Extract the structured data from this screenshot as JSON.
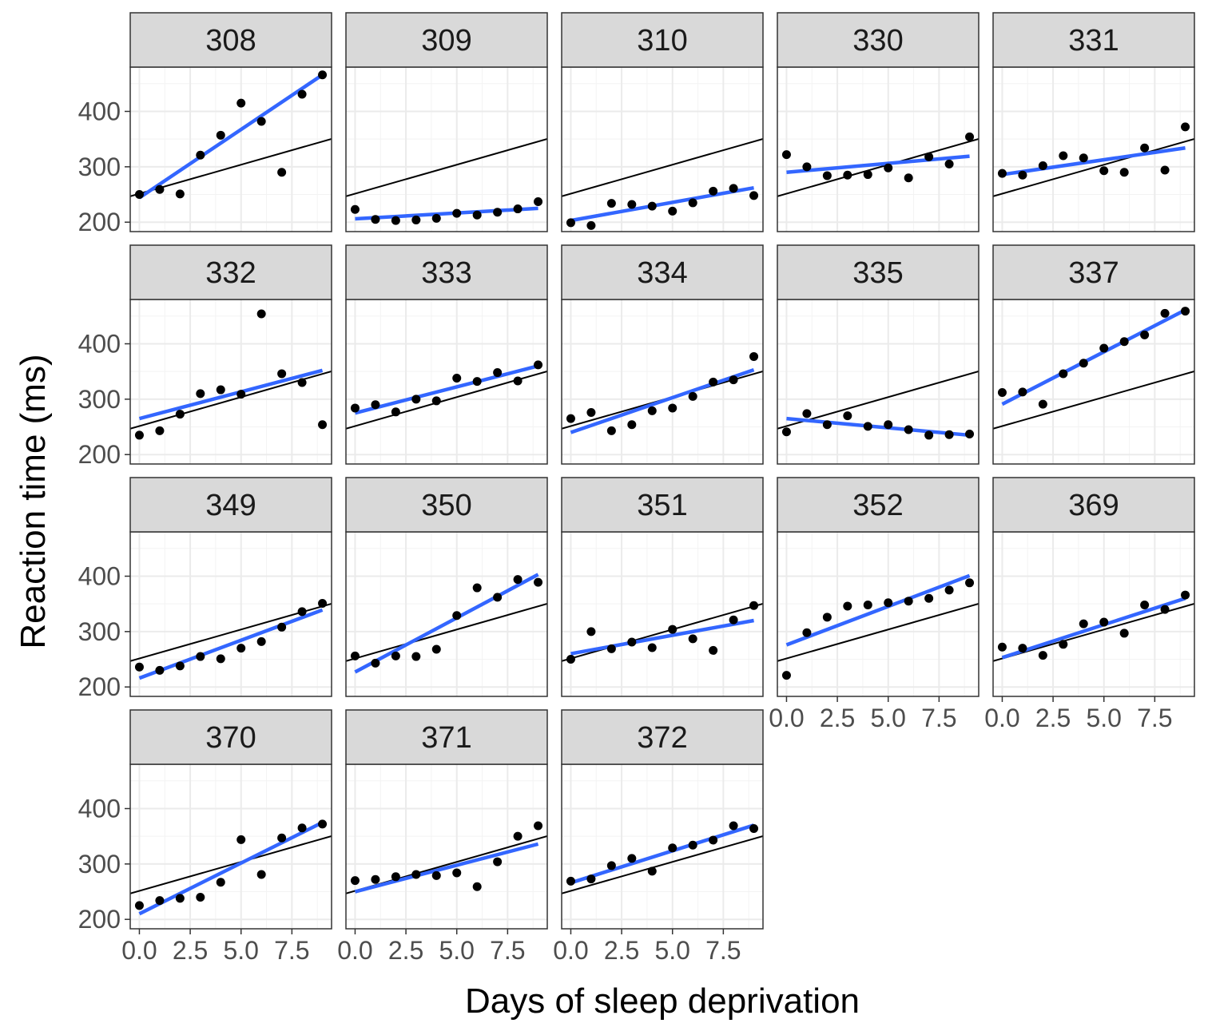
{
  "chart_data": {
    "type": "scatter",
    "xlabel": "Days of sleep deprivation",
    "ylabel": "Reaction time (ms)",
    "xlim": [
      -0.45,
      9.45
    ],
    "ylim": [
      183,
      480
    ],
    "x_ticks": [
      0.0,
      2.5,
      5.0,
      7.5
    ],
    "x_tick_labels": [
      "0.0",
      "2.5",
      "5.0",
      "7.5"
    ],
    "y_ticks": [
      200,
      300,
      400
    ],
    "y_tick_labels": [
      "200",
      "300",
      "400"
    ],
    "grid": true,
    "reference_line": {
      "intercept": 251.4,
      "slope": 10.47
    },
    "x": [
      0,
      1,
      2,
      3,
      4,
      5,
      6,
      7,
      8,
      9
    ],
    "facets": [
      {
        "subject": "308",
        "y": [
          250,
          259,
          251,
          321,
          357,
          415,
          382,
          290,
          431,
          466
        ],
        "fit": [
          244,
          466
        ]
      },
      {
        "subject": "309",
        "y": [
          223,
          205,
          203,
          204,
          207,
          216,
          213,
          218,
          224,
          237
        ],
        "fit": [
          206,
          225
        ]
      },
      {
        "subject": "310",
        "y": [
          199,
          194,
          234,
          232,
          229,
          220,
          235,
          256,
          261,
          248
        ],
        "fit": [
          203,
          262
        ]
      },
      {
        "subject": "330",
        "y": [
          322,
          300,
          284,
          285,
          286,
          298,
          280,
          318,
          305,
          354
        ],
        "fit": [
          290,
          319
        ]
      },
      {
        "subject": "331",
        "y": [
          288,
          285,
          302,
          320,
          316,
          293,
          290,
          334,
          294,
          372
        ],
        "fit": [
          286,
          334
        ]
      },
      {
        "subject": "332",
        "y": [
          235,
          243,
          273,
          310,
          317,
          309,
          454,
          346,
          330,
          254
        ],
        "fit": [
          265,
          352
        ]
      },
      {
        "subject": "333",
        "y": [
          284,
          290,
          277,
          300,
          297,
          338,
          332,
          348,
          333,
          362
        ],
        "fit": [
          275,
          360
        ]
      },
      {
        "subject": "334",
        "y": [
          265,
          276,
          243,
          254,
          279,
          284,
          305,
          331,
          335,
          377
        ],
        "fit": [
          240,
          353
        ]
      },
      {
        "subject": "335",
        "y": [
          241,
          274,
          254,
          270,
          251,
          254,
          245,
          235,
          236,
          237
        ],
        "fit": [
          265,
          235
        ]
      },
      {
        "subject": "337",
        "y": [
          312,
          313,
          291,
          346,
          365,
          392,
          404,
          416,
          455,
          459
        ],
        "fit": [
          291,
          461
        ]
      },
      {
        "subject": "349",
        "y": [
          236,
          230,
          238,
          255,
          251,
          270,
          282,
          308,
          336,
          351
        ],
        "fit": [
          216,
          339
        ]
      },
      {
        "subject": "350",
        "y": [
          256,
          243,
          256,
          255,
          268,
          329,
          379,
          362,
          394,
          389
        ],
        "fit": [
          227,
          403
        ]
      },
      {
        "subject": "351",
        "y": [
          250,
          300,
          269,
          281,
          271,
          304,
          287,
          266,
          321,
          347
        ],
        "fit": [
          260,
          320
        ]
      },
      {
        "subject": "352",
        "y": [
          221,
          298,
          326,
          346,
          348,
          352,
          355,
          360,
          375,
          388
        ],
        "fit": [
          276,
          401
        ]
      },
      {
        "subject": "369",
        "y": [
          272,
          270,
          257,
          277,
          314,
          317,
          297,
          348,
          340,
          366
        ],
        "fit": [
          253,
          360
        ]
      },
      {
        "subject": "370",
        "y": [
          225,
          234,
          238,
          240,
          267,
          344,
          281,
          347,
          365,
          372
        ],
        "fit": [
          210,
          375
        ]
      },
      {
        "subject": "371",
        "y": [
          270,
          272,
          277,
          281,
          279,
          284,
          259,
          304,
          350,
          369
        ],
        "fit": [
          250,
          336
        ]
      },
      {
        "subject": "372",
        "y": [
          269,
          273,
          297,
          310,
          287,
          329,
          334,
          343,
          369,
          364
        ],
        "fit": [
          266,
          370
        ]
      }
    ]
  }
}
